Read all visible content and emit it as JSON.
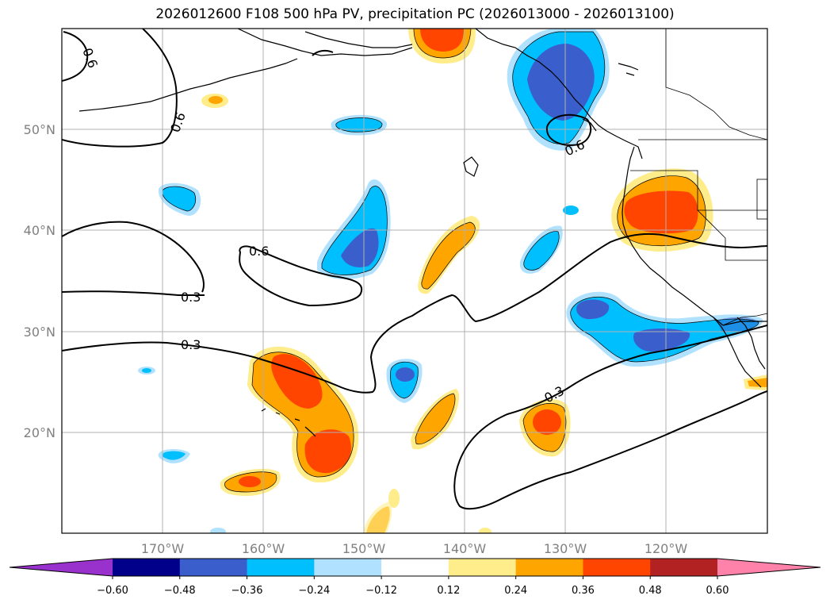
{
  "title": "2026012600 F108 500 hPa PV, precipitation PC (2026013000 - 2026013100)",
  "lat_labels": [
    "50°N",
    "40°N",
    "30°N",
    "20°N"
  ],
  "lon_labels": [
    "170°W",
    "160°W",
    "150°W",
    "140°W",
    "130°W",
    "120°W"
  ],
  "contour_labels": [
    "0.6",
    "0.6",
    "0.6",
    "0.6",
    "0.3",
    "0.3",
    "0.3"
  ],
  "colorbar": {
    "ticks": [
      "−0.60",
      "−0.48",
      "−0.36",
      "−0.24",
      "−0.12",
      "0.12",
      "0.24",
      "0.36",
      "0.48",
      "0.60"
    ],
    "colors": [
      "#9932cc",
      "#00008b",
      "#3a5fcd",
      "#00bfff",
      "#b0e2ff",
      "#ffffff",
      "#ffec8b",
      "#ffa500",
      "#ff4500",
      "#b22222",
      "#ff82ab"
    ]
  },
  "colors": {
    "neg_light": "#b0e2ff",
    "neg_mid": "#00bfff",
    "neg_strong": "#3a5fcd",
    "pos_light": "#ffec8b",
    "pos_mid": "#ffa500",
    "pos_strong": "#ff4500",
    "grid": "#b0b0b0"
  }
}
